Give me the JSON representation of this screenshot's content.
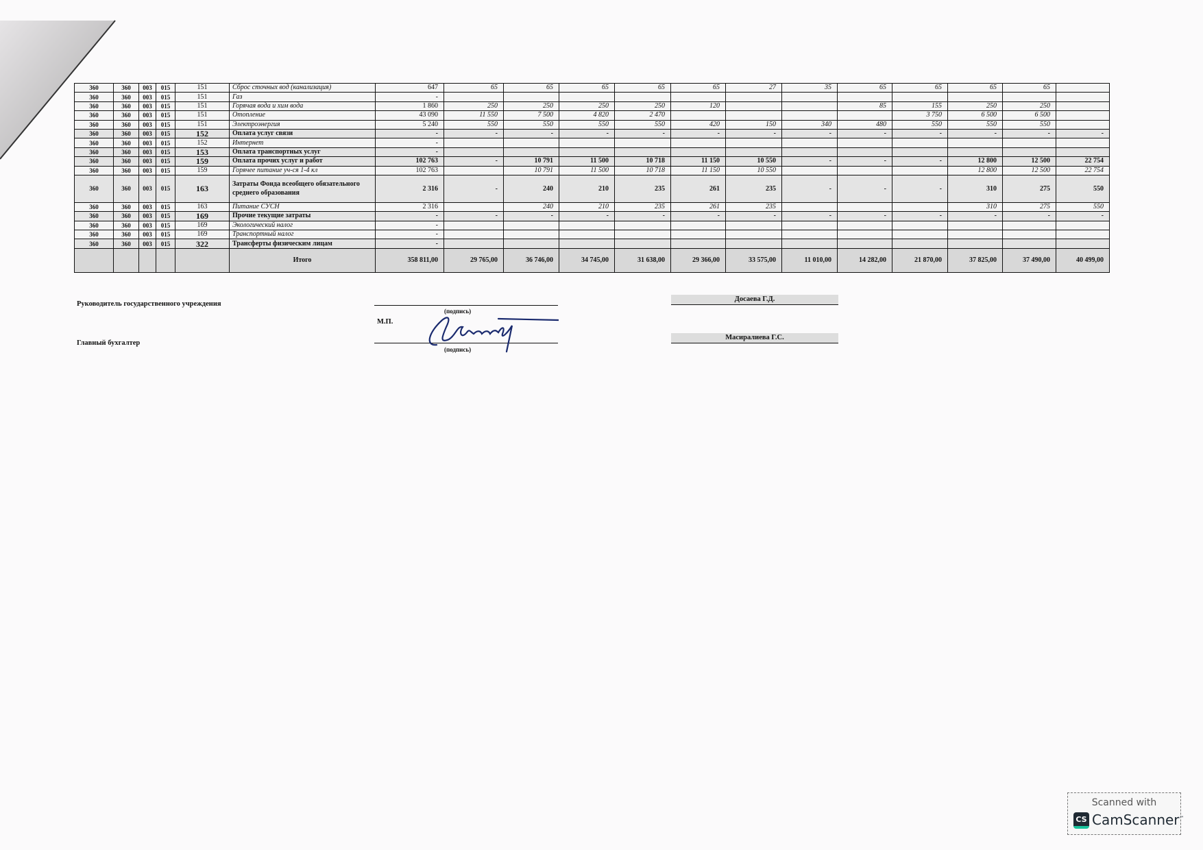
{
  "table": {
    "rows": [
      {
        "style": "ital",
        "codes": [
          "360",
          "360",
          "003",
          "015"
        ],
        "article": "151",
        "name": "Сброс сточных вод (канализация)",
        "total": "647",
        "months": [
          "65",
          "65",
          "65",
          "65",
          "65",
          "27",
          "35",
          "65",
          "65",
          "65",
          "65",
          ""
        ]
      },
      {
        "style": "ital",
        "codes": [
          "360",
          "360",
          "003",
          "015"
        ],
        "article": "151",
        "name": "Газ",
        "total": "-",
        "months": [
          "",
          "",
          "",
          "",
          "",
          "",
          "",
          "",
          "",
          "",
          "",
          ""
        ]
      },
      {
        "style": "ital",
        "codes": [
          "360",
          "360",
          "003",
          "015"
        ],
        "article": "151",
        "name": "Горячая вода и хим вода",
        "total": "1 860",
        "months": [
          "250",
          "250",
          "250",
          "250",
          "120",
          "",
          "",
          "85",
          "155",
          "250",
          "250",
          ""
        ]
      },
      {
        "style": "ital",
        "codes": [
          "360",
          "360",
          "003",
          "015"
        ],
        "article": "151",
        "name": "Отопление",
        "total": "43 090",
        "months": [
          "11 550",
          "7 500",
          "4 820",
          "2 470",
          "",
          "",
          "",
          "",
          "3 750",
          "6 500",
          "6 500",
          ""
        ]
      },
      {
        "style": "ital",
        "codes": [
          "360",
          "360",
          "003",
          "015"
        ],
        "article": "151",
        "name": "Электроэнергия",
        "total": "5 240",
        "months": [
          "550",
          "550",
          "550",
          "550",
          "420",
          "150",
          "340",
          "480",
          "550",
          "550",
          "550",
          ""
        ]
      },
      {
        "style": "bold",
        "codes": [
          "360",
          "360",
          "003",
          "015"
        ],
        "article": "152",
        "name": "Оплата услуг связи",
        "total": "-",
        "months": [
          "-",
          "-",
          "-",
          "-",
          "-",
          "-",
          "-",
          "-",
          "-",
          "-",
          "-",
          "-"
        ]
      },
      {
        "style": "ital",
        "codes": [
          "360",
          "360",
          "003",
          "015"
        ],
        "article": "152",
        "name": "Интернет",
        "total": "-",
        "months": [
          "",
          "",
          "",
          "",
          "",
          "",
          "",
          "",
          "",
          "",
          "",
          ""
        ]
      },
      {
        "style": "bold",
        "codes": [
          "360",
          "360",
          "003",
          "015"
        ],
        "article": "153",
        "name": "Оплата транспортных услуг",
        "total": "-",
        "months": [
          "",
          "",
          "",
          "",
          "",
          "",
          "",
          "",
          "",
          "",
          "",
          ""
        ]
      },
      {
        "style": "bold",
        "codes": [
          "360",
          "360",
          "003",
          "015"
        ],
        "article": "159",
        "name": "Оплата прочих услуг и работ",
        "total": "102 763",
        "months": [
          "-",
          "10 791",
          "11 500",
          "10 718",
          "11 150",
          "10 550",
          "-",
          "-",
          "-",
          "12 800",
          "12 500",
          "22 754"
        ]
      },
      {
        "style": "ital",
        "codes": [
          "360",
          "360",
          "003",
          "015"
        ],
        "article": "159",
        "name": "Горячее питание уч-ся 1-4 кл",
        "total": "102 763",
        "months": [
          "",
          "10 791",
          "11 500",
          "10 718",
          "11 150",
          "10 550",
          "",
          "",
          "",
          "12 800",
          "12 500",
          "22 754"
        ]
      },
      {
        "style": "bold tall",
        "codes": [
          "360",
          "360",
          "003",
          "015"
        ],
        "article": "163",
        "name": "Затраты Фонда всеобщего обязательного среднего образования",
        "total": "2 316",
        "months": [
          "-",
          "240",
          "210",
          "235",
          "261",
          "235",
          "-",
          "-",
          "-",
          "310",
          "275",
          "550"
        ]
      },
      {
        "style": "ital",
        "codes": [
          "360",
          "360",
          "003",
          "015"
        ],
        "article": "163",
        "name": "Питание СУСН",
        "total": "2 316",
        "months": [
          "",
          "240",
          "210",
          "235",
          "261",
          "235",
          "",
          "",
          "",
          "310",
          "275",
          "550"
        ]
      },
      {
        "style": "bold",
        "codes": [
          "360",
          "360",
          "003",
          "015"
        ],
        "article": "169",
        "name": "Прочие текущие затраты",
        "total": "-",
        "months": [
          "-",
          "-",
          "-",
          "-",
          "-",
          "-",
          "-",
          "-",
          "-",
          "-",
          "-",
          "-"
        ]
      },
      {
        "style": "ital",
        "codes": [
          "360",
          "360",
          "003",
          "015"
        ],
        "article": "169",
        "name": "Экологический налог",
        "total": "-",
        "months": [
          "",
          "",
          "",
          "",
          "",
          "",
          "",
          "",
          "",
          "",
          "",
          ""
        ]
      },
      {
        "style": "ital",
        "codes": [
          "360",
          "360",
          "003",
          "015"
        ],
        "article": "169",
        "name": "Транспортный налог",
        "total": "-",
        "months": [
          "",
          "",
          "",
          "",
          "",
          "",
          "",
          "",
          "",
          "",
          "",
          ""
        ]
      },
      {
        "style": "bold",
        "codes": [
          "360",
          "360",
          "003",
          "015"
        ],
        "article": "322",
        "name": "Трансферты физическим лицам",
        "total": "-",
        "months": [
          "",
          "",
          "",
          "",
          "",
          "",
          "",
          "",
          "",
          "",
          "",
          ""
        ]
      }
    ],
    "total_row": {
      "name": "Итого",
      "total": "358 811,00",
      "months": [
        "29 765,00",
        "36 746,00",
        "34 745,00",
        "31 638,00",
        "29 366,00",
        "33 575,00",
        "11 010,00",
        "14 282,00",
        "21 870,00",
        "37 825,00",
        "37 490,00",
        "40 499,00"
      ]
    }
  },
  "signatures": {
    "head_label": "Руководитель государственного учреждения",
    "accountant_label": "Главный бухгалтер",
    "stamp_label": "М.П.",
    "signature_caption_1": "(подпись)",
    "signature_caption_2": "(подпись)",
    "head_name": "Досаева Г.Д.",
    "accountant_name": "Масиралиева Г.С."
  },
  "watermark": {
    "line1": "Scanned with",
    "logo": "CS",
    "line2": "CamScanner",
    "tm": "™",
    "colors": {
      "dark": "#1f2a33",
      "accent": "#19c39c"
    }
  }
}
